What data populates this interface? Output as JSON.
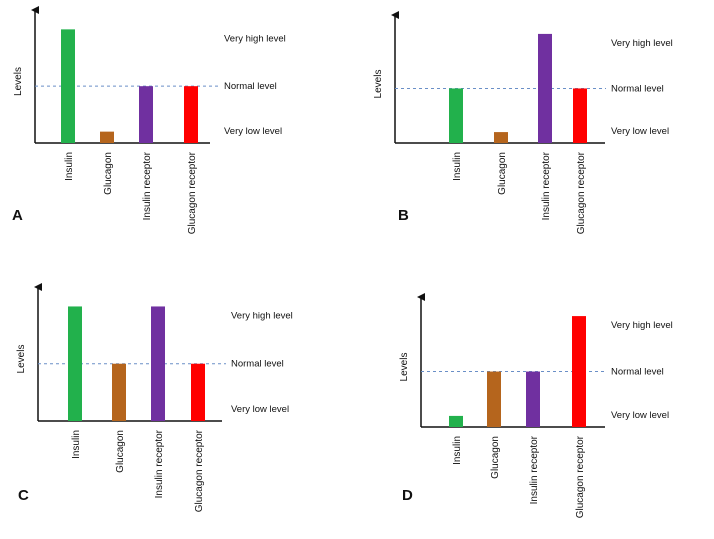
{
  "chart_data": [
    {
      "type": "bar",
      "panel": "A",
      "ylabel": "Levels",
      "categories": [
        "Insulin",
        "Glucagon",
        "Insulin receptor",
        "Glucagon receptor"
      ],
      "values": [
        3,
        0.3,
        1.5,
        1.5
      ],
      "colors": [
        "#22b14c",
        "#b5651d",
        "#7030a0",
        "#ff0000"
      ],
      "level_labels": [
        "Very high level",
        "Normal level",
        "Very low level"
      ],
      "reference_line": 1.5,
      "ylim": [
        0,
        3.3
      ]
    },
    {
      "type": "bar",
      "panel": "B",
      "ylabel": "Levels",
      "categories": [
        "Insulin",
        "Glucagon",
        "Insulin receptor",
        "Glucagon receptor"
      ],
      "values": [
        1.5,
        0.3,
        3,
        1.5
      ],
      "colors": [
        "#22b14c",
        "#b5651d",
        "#7030a0",
        "#ff0000"
      ],
      "level_labels": [
        "Very high level",
        "Normal level",
        "Very low level"
      ],
      "reference_line": 1.5,
      "ylim": [
        0,
        3.3
      ]
    },
    {
      "type": "bar",
      "panel": "C",
      "ylabel": "Levels",
      "categories": [
        "Insulin",
        "Glucagon",
        "Insulin receptor",
        "Glucagon receptor"
      ],
      "values": [
        3,
        1.5,
        3,
        1.5
      ],
      "colors": [
        "#22b14c",
        "#b5651d",
        "#7030a0",
        "#ff0000"
      ],
      "level_labels": [
        "Very high level",
        "Normal level",
        "Very low level"
      ],
      "reference_line": 1.5,
      "ylim": [
        0,
        3.3
      ]
    },
    {
      "type": "bar",
      "panel": "D",
      "ylabel": "Levels",
      "categories": [
        "Insulin",
        "Glucagon",
        "Insulin receptor",
        "Glucagon receptor"
      ],
      "values": [
        0.3,
        1.5,
        1.5,
        3
      ],
      "colors": [
        "#22b14c",
        "#b5651d",
        "#7030a0",
        "#ff0000"
      ],
      "level_labels": [
        "Very high level",
        "Normal level",
        "Very low level"
      ],
      "reference_line": 1.5,
      "ylim": [
        0,
        3.3
      ]
    }
  ]
}
